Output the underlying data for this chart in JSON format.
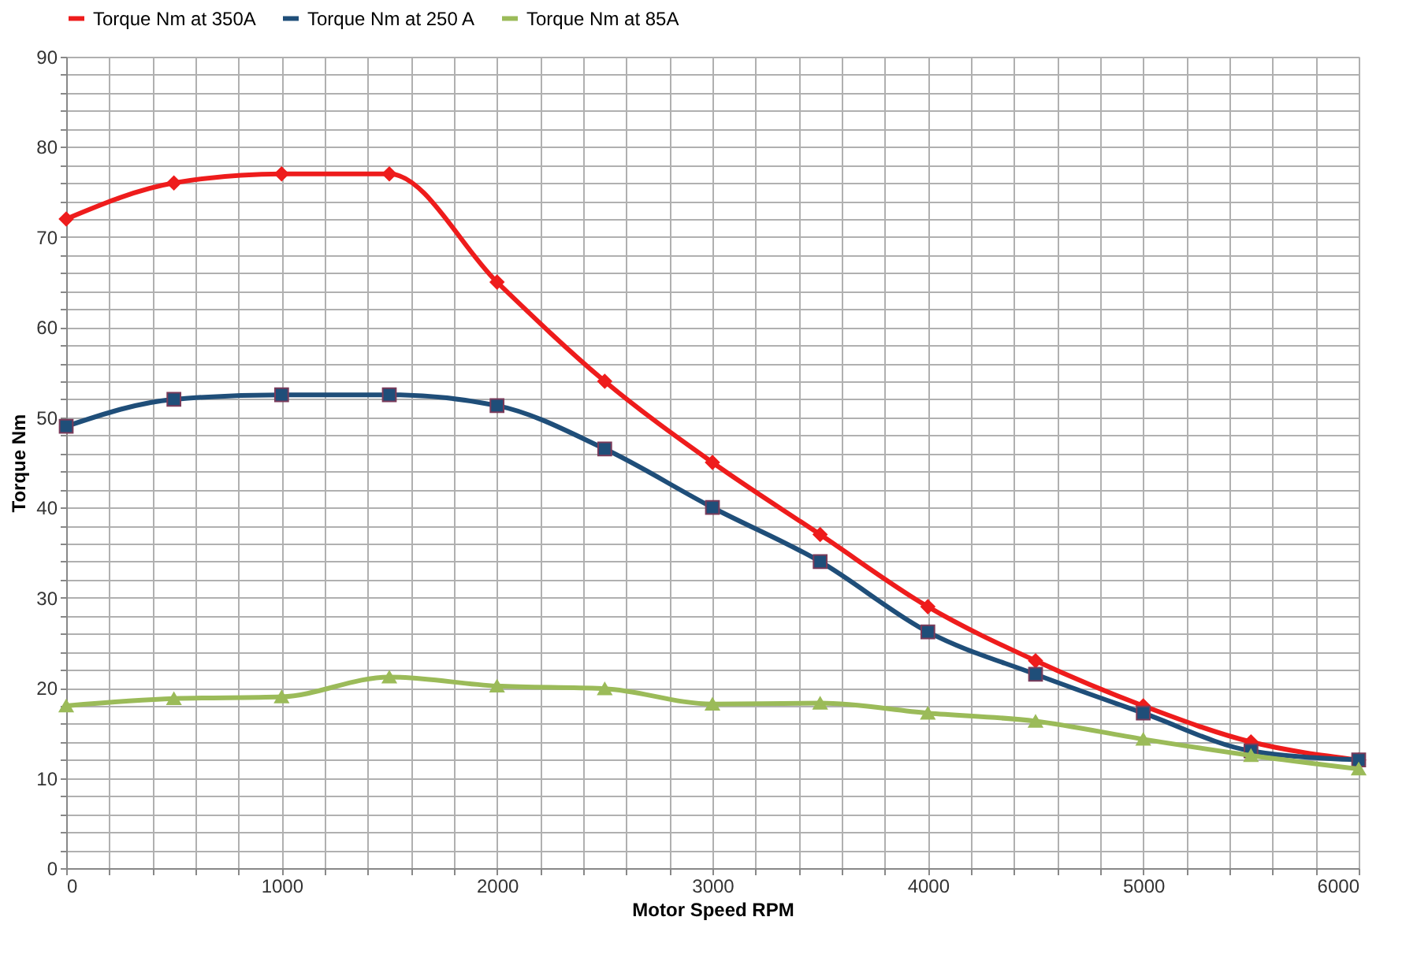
{
  "chart_data": {
    "type": "line",
    "xlabel": "Motor Speed RPM",
    "ylabel": "Torque Nm",
    "x": [
      0,
      500,
      1000,
      1500,
      2000,
      2500,
      3000,
      3500,
      4000,
      4500,
      5000,
      5500,
      6000
    ],
    "series": [
      {
        "name": "Torque Nm at 350A",
        "color": "#ee1c1c",
        "marker": "diamond",
        "values": [
          72,
          76,
          77,
          77,
          65,
          54,
          45,
          37,
          29,
          23,
          18,
          14,
          12
        ]
      },
      {
        "name": "Torque Nm at 250 A",
        "color": "#1f4e79",
        "marker": "square",
        "values": [
          49,
          52,
          52.5,
          52.5,
          51.3,
          46.5,
          40,
          34,
          26.2,
          21.5,
          17.2,
          13,
          12
        ]
      },
      {
        "name": "Torque Nm at 85A",
        "color": "#9bbb59",
        "marker": "triangle",
        "values": [
          18,
          18.8,
          19,
          21.2,
          20.2,
          19.9,
          18.2,
          18.3,
          17.2,
          16.3,
          14.3,
          12.5,
          11
        ]
      }
    ],
    "xlim": [
      0,
      6000
    ],
    "xticks": [
      0,
      {
        "value": 200,
        "label": null
      },
      {
        "value": 400,
        "label": null
      },
      {
        "value": 600,
        "label": null
      },
      {
        "value": 800,
        "label": null
      },
      1000,
      {
        "value": 1200,
        "label": null
      },
      {
        "value": 1400,
        "label": null
      },
      {
        "value": 1600,
        "label": null
      },
      {
        "value": 1800,
        "label": null
      },
      2000,
      {
        "value": 2200,
        "label": null
      },
      {
        "value": 2400,
        "label": null
      },
      {
        "value": 2600,
        "label": null
      },
      {
        "value": 2800,
        "label": null
      },
      3000,
      {
        "value": 3200,
        "label": null
      },
      {
        "value": 3400,
        "label": null
      },
      {
        "value": 3600,
        "label": null
      },
      {
        "value": 3800,
        "label": null
      },
      4000,
      {
        "value": 4200,
        "label": null
      },
      {
        "value": 4400,
        "label": null
      },
      {
        "value": 4600,
        "label": null
      },
      {
        "value": 4800,
        "label": null
      },
      5000,
      {
        "value": 5200,
        "label": null
      },
      {
        "value": 5400,
        "label": null
      },
      {
        "value": 5600,
        "label": null
      },
      {
        "value": 5800,
        "label": null
      },
      6000
    ],
    "ylim": [
      0,
      90
    ],
    "yticks": [
      0,
      {
        "value": 2,
        "label": null
      },
      {
        "value": 4,
        "label": null
      },
      {
        "value": 6,
        "label": null
      },
      {
        "value": 8,
        "label": null
      },
      10,
      {
        "value": 12,
        "label": null
      },
      {
        "value": 14,
        "label": null
      },
      {
        "value": 16,
        "label": null
      },
      {
        "value": 18,
        "label": null
      },
      20,
      {
        "value": 22,
        "label": null
      },
      {
        "value": 24,
        "label": null
      },
      {
        "value": 26,
        "label": null
      },
      {
        "value": 28,
        "label": null
      },
      30,
      {
        "value": 32,
        "label": null
      },
      {
        "value": 34,
        "label": null
      },
      {
        "value": 36,
        "label": null
      },
      {
        "value": 38,
        "label": null
      },
      40,
      {
        "value": 42,
        "label": null
      },
      {
        "value": 44,
        "label": null
      },
      {
        "value": 46,
        "label": null
      },
      {
        "value": 48,
        "label": null
      },
      50,
      {
        "value": 52,
        "label": null
      },
      {
        "value": 54,
        "label": null
      },
      {
        "value": 56,
        "label": null
      },
      {
        "value": 58,
        "label": null
      },
      60,
      {
        "value": 62,
        "label": null
      },
      {
        "value": 64,
        "label": null
      },
      {
        "value": 66,
        "label": null
      },
      {
        "value": 68,
        "label": null
      },
      70,
      {
        "value": 72,
        "label": null
      },
      {
        "value": 74,
        "label": null
      },
      {
        "value": 76,
        "label": null
      },
      {
        "value": 78,
        "label": null
      },
      80,
      {
        "value": 82,
        "label": null
      },
      {
        "value": 84,
        "label": null
      },
      {
        "value": 86,
        "label": null
      },
      {
        "value": 88,
        "label": null
      },
      90
    ],
    "grid": true,
    "legend": "top",
    "line_style": "solid"
  }
}
